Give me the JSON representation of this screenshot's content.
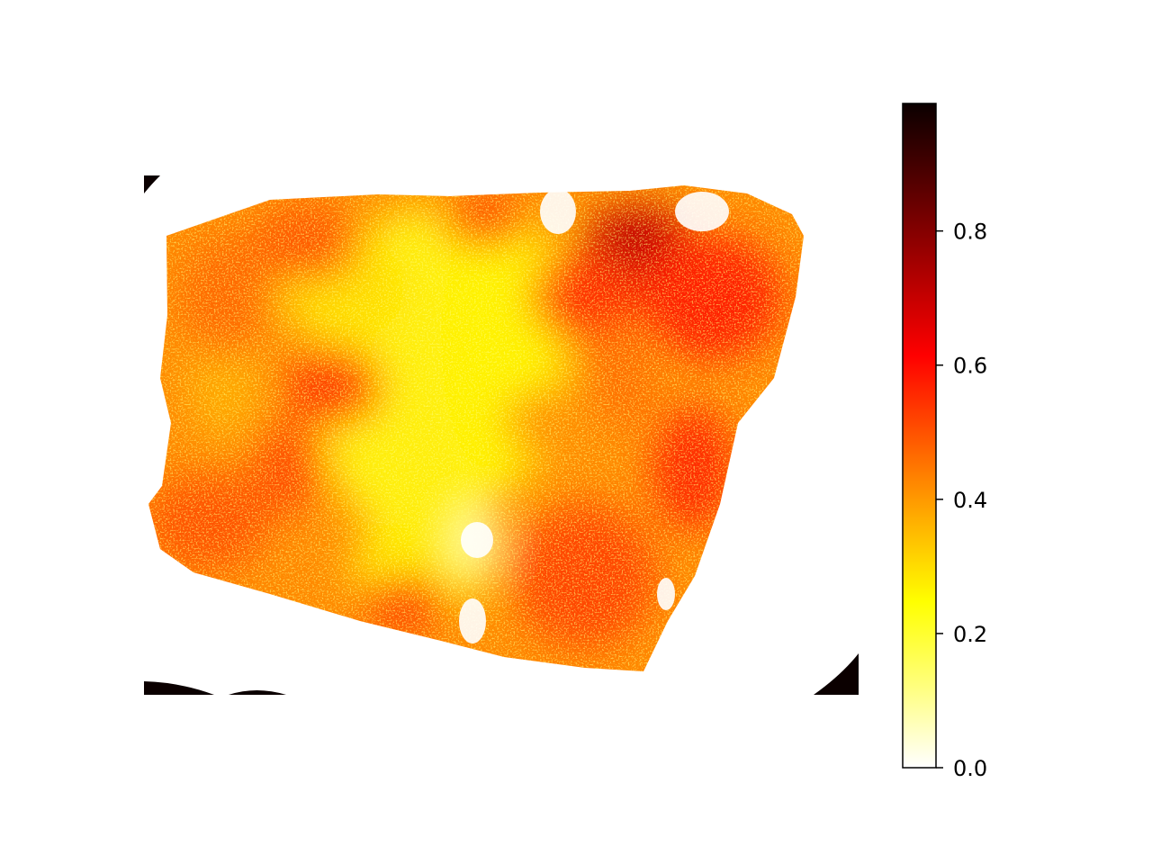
{
  "chart_data": {
    "type": "heatmap",
    "title": "",
    "xlabel": "",
    "ylabel": "",
    "axes_visible": false,
    "colormap": "hot_r",
    "colormap_stops": [
      "#ffffff",
      "#ffff80",
      "#ffff00",
      "#ffaa00",
      "#ff5500",
      "#ff0000",
      "#aa0000",
      "#550000",
      "#0b0000"
    ],
    "colorbar": {
      "location": "right",
      "range": [
        0.0,
        0.99
      ],
      "ticks": [
        0.0,
        0.2,
        0.4,
        0.6,
        0.8
      ],
      "tick_labels": [
        "0.0",
        "0.2",
        "0.4",
        "0.6",
        "0.8"
      ]
    },
    "image_description_values": {
      "background_value": 0.0,
      "tissue_typical_range": [
        0.2,
        0.6
      ],
      "dark_corner_value": 0.99
    }
  }
}
